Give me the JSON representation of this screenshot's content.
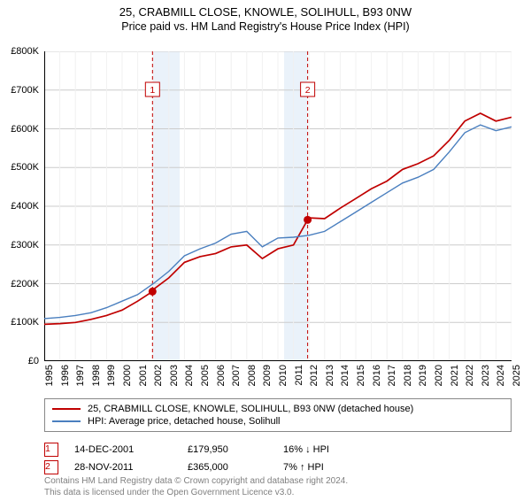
{
  "title": "25, CRABMILL CLOSE, KNOWLE, SOLIHULL, B93 0NW",
  "subtitle": "Price paid vs. HM Land Registry's House Price Index (HPI)",
  "chart": {
    "type": "line",
    "background_color": "#ffffff",
    "grid_color": "#f0f0f0",
    "grid_major_color": "#cccccc",
    "axis_color": "#000000",
    "x_years": [
      1995,
      1996,
      1997,
      1998,
      1999,
      2000,
      2001,
      2002,
      2003,
      2004,
      2005,
      2006,
      2007,
      2008,
      2009,
      2010,
      2011,
      2012,
      2013,
      2014,
      2015,
      2016,
      2017,
      2018,
      2019,
      2020,
      2021,
      2022,
      2023,
      2024,
      2025
    ],
    "ylim": [
      0,
      800000
    ],
    "ytick_step": 100000,
    "ytick_labels": [
      "£0",
      "£100K",
      "£200K",
      "£300K",
      "£400K",
      "£500K",
      "£600K",
      "£700K",
      "£800K"
    ],
    "x_rotation_deg": -90,
    "shaded_bands": [
      {
        "from_year": 2001.95,
        "to_year": 2003.7,
        "color": "#eaf2fa"
      },
      {
        "from_year": 2010.4,
        "to_year": 2011.91,
        "color": "#eaf2fa"
      }
    ],
    "series": [
      {
        "name": "property",
        "label": "25, CRABMILL CLOSE, KNOWLE, SOLIHULL, B93 0NW (detached house)",
        "color": "#c00000",
        "line_width": 1.7,
        "points": [
          [
            1995,
            95000
          ],
          [
            1996,
            97000
          ],
          [
            1997,
            100000
          ],
          [
            1998,
            108000
          ],
          [
            1999,
            118000
          ],
          [
            2000,
            132000
          ],
          [
            2001,
            155000
          ],
          [
            2001.95,
            179950
          ],
          [
            2002,
            185000
          ],
          [
            2003,
            215000
          ],
          [
            2004,
            255000
          ],
          [
            2005,
            270000
          ],
          [
            2006,
            278000
          ],
          [
            2007,
            295000
          ],
          [
            2008,
            300000
          ],
          [
            2009,
            265000
          ],
          [
            2010,
            290000
          ],
          [
            2011,
            300000
          ],
          [
            2011.91,
            365000
          ],
          [
            2012,
            370000
          ],
          [
            2013,
            368000
          ],
          [
            2014,
            395000
          ],
          [
            2015,
            420000
          ],
          [
            2016,
            445000
          ],
          [
            2017,
            465000
          ],
          [
            2018,
            495000
          ],
          [
            2019,
            510000
          ],
          [
            2020,
            530000
          ],
          [
            2021,
            570000
          ],
          [
            2022,
            620000
          ],
          [
            2023,
            640000
          ],
          [
            2024,
            620000
          ],
          [
            2025,
            630000
          ]
        ]
      },
      {
        "name": "hpi",
        "label": "HPI: Average price, detached house, Solihull",
        "color": "#4a7fbf",
        "line_width": 1.4,
        "points": [
          [
            1995,
            110000
          ],
          [
            1996,
            113000
          ],
          [
            1997,
            118000
          ],
          [
            1998,
            125000
          ],
          [
            1999,
            138000
          ],
          [
            2000,
            155000
          ],
          [
            2001,
            172000
          ],
          [
            2002,
            200000
          ],
          [
            2003,
            232000
          ],
          [
            2004,
            272000
          ],
          [
            2005,
            290000
          ],
          [
            2006,
            305000
          ],
          [
            2007,
            328000
          ],
          [
            2008,
            335000
          ],
          [
            2009,
            295000
          ],
          [
            2010,
            318000
          ],
          [
            2011,
            320000
          ],
          [
            2012,
            325000
          ],
          [
            2013,
            335000
          ],
          [
            2014,
            360000
          ],
          [
            2015,
            385000
          ],
          [
            2016,
            410000
          ],
          [
            2017,
            435000
          ],
          [
            2018,
            460000
          ],
          [
            2019,
            475000
          ],
          [
            2020,
            495000
          ],
          [
            2021,
            540000
          ],
          [
            2022,
            590000
          ],
          [
            2023,
            610000
          ],
          [
            2024,
            595000
          ],
          [
            2025,
            605000
          ]
        ]
      }
    ],
    "markers": [
      {
        "n": "1",
        "year": 2001.95,
        "value": 179950,
        "dot_color": "#c00000",
        "box_border": "#c00000",
        "box_y": 720000
      },
      {
        "n": "2",
        "year": 2011.91,
        "value": 365000,
        "dot_color": "#c00000",
        "box_border": "#c00000",
        "box_y": 720000
      }
    ],
    "marker_line_color": "#c00000",
    "marker_line_dash": "4,3",
    "label_fontsize": 11,
    "title_fontsize": 13
  },
  "legend": {
    "items": [
      {
        "color": "#c00000",
        "label": "25, CRABMILL CLOSE, KNOWLE, SOLIHULL, B93 0NW (detached house)"
      },
      {
        "color": "#4a7fbf",
        "label": "HPI: Average price, detached house, Solihull"
      }
    ]
  },
  "transactions": [
    {
      "n": "1",
      "date": "14-DEC-2001",
      "price": "£179,950",
      "delta": "16% ↓ HPI",
      "border": "#c00000"
    },
    {
      "n": "2",
      "date": "28-NOV-2011",
      "price": "£365,000",
      "delta": "7% ↑ HPI",
      "border": "#c00000"
    }
  ],
  "source": {
    "line1": "Contains HM Land Registry data © Crown copyright and database right 2024.",
    "line2": "This data is licensed under the Open Government Licence v3.0."
  }
}
